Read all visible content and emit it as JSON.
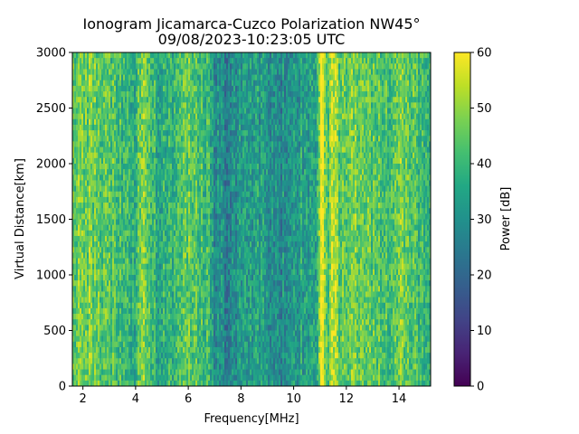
{
  "chart_data": {
    "type": "heatmap",
    "title": "Ionogram Jicamarca-Cuzco Polarization NW45°",
    "subtitle": "09/08/2023-10:23:05 UTC",
    "xlabel": "Frequency[MHz]",
    "ylabel": "Virtual Distance[km]",
    "colorbar_label": "Power [dB]",
    "xlim": [
      1.6,
      15.2
    ],
    "ylim": [
      0,
      3000
    ],
    "clim": [
      0,
      60
    ],
    "colormap": "viridis",
    "x_ticks": [
      2,
      4,
      6,
      8,
      10,
      12,
      14
    ],
    "y_ticks": [
      0,
      500,
      1000,
      1500,
      2000,
      2500,
      3000
    ],
    "colorbar_ticks": [
      0,
      10,
      20,
      30,
      40,
      50,
      60
    ],
    "column_power_profile": {
      "frequency_mhz": [
        1.6,
        2.0,
        2.5,
        3.0,
        3.5,
        4.0,
        4.2,
        4.5,
        5.0,
        5.5,
        6.0,
        6.3,
        6.8,
        7.0,
        7.5,
        8.0,
        8.5,
        9.0,
        9.5,
        10.0,
        10.5,
        10.9,
        11.0,
        11.1,
        11.3,
        11.5,
        11.7,
        12.0,
        12.5,
        13.0,
        13.5,
        14.0,
        14.5,
        15.2
      ],
      "mean_power_db": [
        44,
        48,
        46,
        43,
        40,
        38,
        50,
        40,
        37,
        39,
        47,
        44,
        38,
        30,
        27,
        31,
        34,
        31,
        28,
        32,
        34,
        36,
        58,
        59,
        40,
        56,
        45,
        46,
        47,
        44,
        41,
        48,
        42,
        40
      ]
    },
    "grid": false,
    "legend": "colorbar-right"
  }
}
